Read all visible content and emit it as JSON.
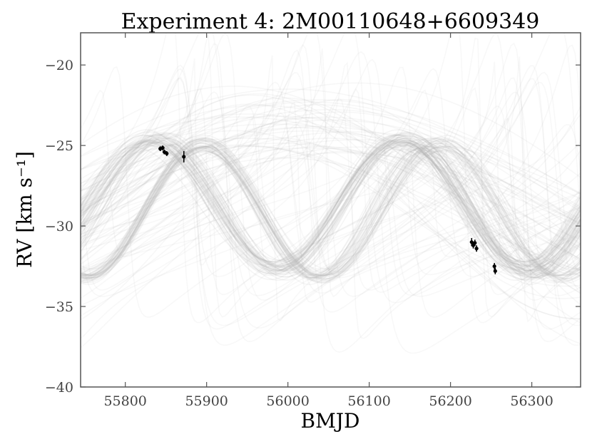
{
  "chart_data": {
    "type": "scatter",
    "title": "Experiment 4: 2M00110648+6609349",
    "xlabel": "BMJD",
    "ylabel": "RV [km s⁻¹]",
    "xlim": [
      55745,
      56360
    ],
    "ylim": [
      -40,
      -18
    ],
    "xticks": [
      55800,
      55900,
      56000,
      56100,
      56200,
      56300
    ],
    "yticks": [
      -20,
      -25,
      -30,
      -35,
      -40
    ],
    "xtick_labels": [
      "55800",
      "55900",
      "56000",
      "56100",
      "56200",
      "56300"
    ],
    "ytick_labels": [
      "−20",
      "−25",
      "−30",
      "−35",
      "−40"
    ],
    "grid": false,
    "series": [
      {
        "kind": "observed-points",
        "x": [
          55843,
          55846,
          55848,
          55851,
          55872,
          56226,
          56228,
          56230,
          56232,
          56254,
          56255
        ],
        "y": [
          -25.2,
          -25.15,
          -25.4,
          -25.5,
          -25.7,
          -31.0,
          -31.2,
          -31.05,
          -31.4,
          -32.5,
          -32.8
        ],
        "yerr": [
          0.15,
          0.15,
          0.15,
          0.15,
          0.35,
          0.25,
          0.2,
          0.2,
          0.2,
          0.2,
          0.2
        ]
      }
    ],
    "colors": {
      "points": "#000000",
      "samples": "#b5b5b5",
      "axes": "#555555"
    }
  }
}
